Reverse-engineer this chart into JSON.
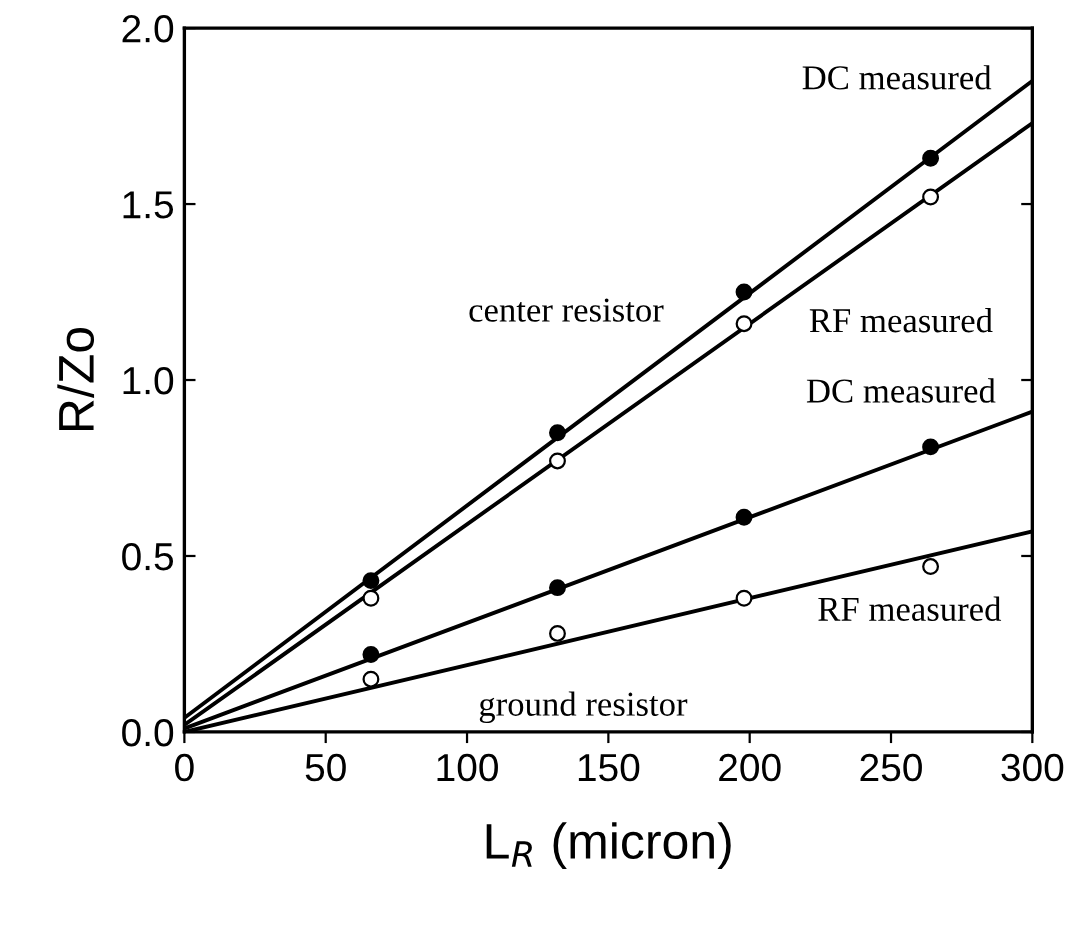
{
  "chart_data": {
    "type": "scatter",
    "xlabel": "L$_{R}$ (micron)",
    "ylabel": "R/Zo",
    "xlim": [
      0,
      300
    ],
    "ylim": [
      0,
      2.0
    ],
    "xticks": [
      0,
      50,
      100,
      150,
      200,
      250,
      300
    ],
    "yticks": [
      {
        "value": 0,
        "label": "0.0"
      },
      0.5,
      {
        "value": 1,
        "label": "1.0"
      },
      1.5,
      {
        "value": 2,
        "label": "2.0"
      }
    ],
    "grid": false,
    "legend": false,
    "series": [
      {
        "marker": "circle",
        "color": "#000000",
        "x": [
          66,
          132,
          198,
          264
        ],
        "values": [
          0.43,
          0.85,
          1.25,
          1.63
        ]
      },
      {
        "marker": "circle",
        "color": "#ffffff",
        "x": [
          66,
          132,
          198,
          264
        ],
        "values": [
          0.38,
          0.77,
          1.16,
          1.52
        ]
      },
      {
        "marker": "circle",
        "color": "#000000",
        "x": [
          66,
          132,
          198,
          264
        ],
        "values": [
          0.22,
          0.41,
          0.61,
          0.81
        ]
      },
      {
        "marker": "circle",
        "color": "#ffffff",
        "x": [
          66,
          132,
          198,
          264
        ],
        "values": [
          0.15,
          0.28,
          0.38,
          0.47
        ]
      },
      {
        "type": "line",
        "color": "#000000",
        "x": [
          0,
          300
        ],
        "values": [
          0.04,
          1.85
        ]
      },
      {
        "type": "line",
        "color": "#000000",
        "x": [
          0,
          300
        ],
        "values": [
          0.02,
          1.73
        ]
      },
      {
        "type": "line",
        "color": "#000000",
        "x": [
          0,
          300
        ],
        "values": [
          0.01,
          0.91
        ]
      },
      {
        "type": "line",
        "color": "#000000",
        "x": [
          0,
          300
        ],
        "values": [
          0.0,
          0.57
        ]
      }
    ],
    "annotations": [
      "DC measured",
      "center resistor",
      "RF measured",
      "DC measured",
      "RF measured",
      "ground resistor"
    ]
  }
}
